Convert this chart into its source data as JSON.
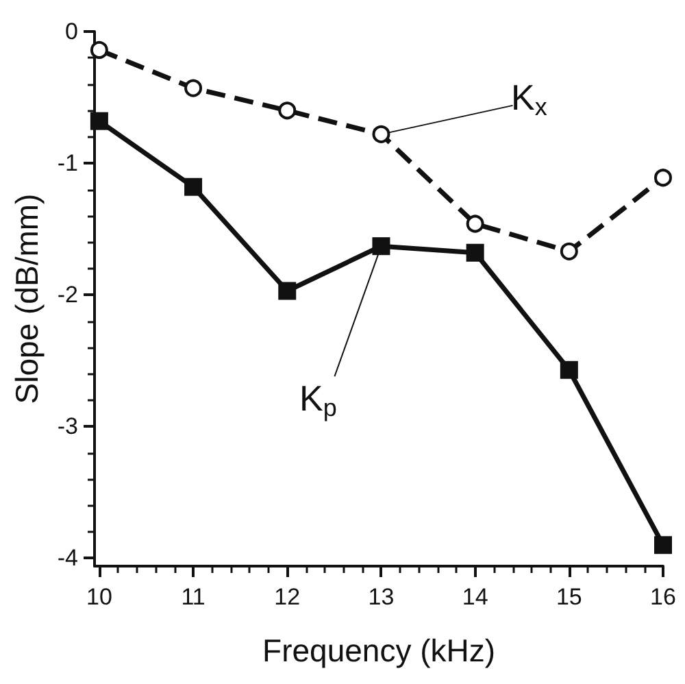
{
  "chart_data": {
    "type": "line",
    "xlabel": "Frequency (kHz)",
    "ylabel": "Slope (dB/mm)",
    "x": [
      10,
      11,
      12,
      13,
      14,
      15,
      16
    ],
    "series": [
      {
        "color": "#111111",
        "values": [
          -0.14,
          -0.43,
          -0.6,
          -0.78,
          -1.46,
          -1.67,
          -1.11
        ],
        "marker": "circle",
        "line_style": "dashed"
      },
      {
        "color": "#111111",
        "values": [
          -0.68,
          -1.18,
          -1.97,
          -1.63,
          -1.68,
          -2.57,
          -3.9
        ],
        "marker": "square",
        "line_style": "solid"
      }
    ],
    "annotations": [
      {
        "text": "K$_{x}$",
        "x": 13,
        "y": -0.78
      },
      {
        "text": "K$_{p}$",
        "x": 13,
        "y": -1.63
      }
    ],
    "xlim": [
      9.95,
      16
    ],
    "ylim": [
      -4.06,
      0
    ],
    "xticks": [
      10,
      11,
      12,
      13,
      14,
      15,
      16
    ],
    "yticks": [
      -4,
      -3,
      -2,
      -1,
      0
    ],
    "grid": false
  }
}
